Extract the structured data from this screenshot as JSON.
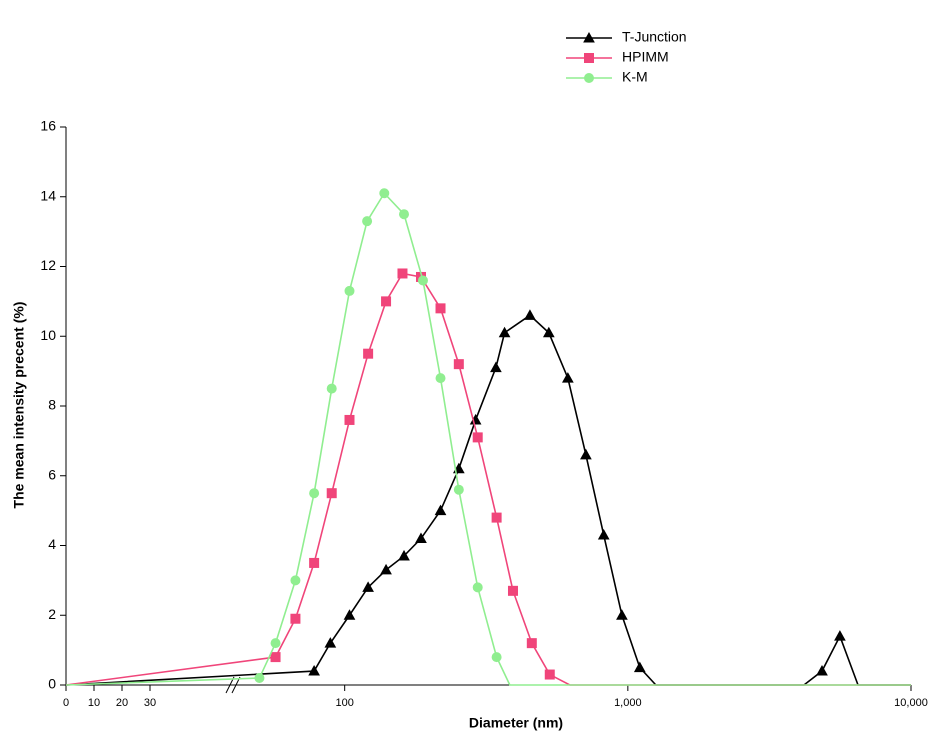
{
  "chart_data": {
    "type": "line",
    "x_label": "Diameter (nm)",
    "y_label": "The mean intensity precent (%)",
    "xscale": "log",
    "xbreak": 40,
    "xlim": [
      0,
      10000
    ],
    "ylim": [
      0,
      16
    ],
    "xticks": [
      0,
      10,
      20,
      30,
      100,
      {
        "value": 1000,
        "label": "1,000"
      },
      {
        "value": 10000,
        "label": "10,000"
      }
    ],
    "yticks": [
      0,
      2,
      4,
      6,
      8,
      10,
      12,
      14,
      16
    ],
    "legend": "top-right",
    "series": [
      {
        "name": "T-Junction",
        "color": "#000000",
        "marker": "triangle",
        "x": [
          0,
          78,
          89,
          104,
          121,
          140,
          162,
          186,
          218,
          253,
          290,
          342,
          367,
          451,
          526,
          614,
          711,
          822,
          953,
          1102,
          1256,
          4188,
          4850,
          5610,
          6500,
          10000
        ],
        "values": [
          0,
          0.4,
          1.2,
          2.0,
          2.8,
          3.3,
          3.7,
          4.2,
          5.0,
          6.2,
          7.6,
          9.1,
          10.1,
          10.6,
          10.1,
          8.8,
          6.6,
          4.3,
          2.0,
          0.5,
          0,
          0,
          0.4,
          1.4,
          0,
          0
        ]
      },
      {
        "name": "HPIMM",
        "color": "#f0457a",
        "marker": "square",
        "x": [
          0,
          57,
          67,
          78,
          90,
          104,
          121,
          140,
          160,
          186,
          218,
          253,
          295,
          344,
          393,
          458,
          530,
          624,
          10000
        ],
        "values": [
          0,
          0.8,
          1.9,
          3.5,
          5.5,
          7.6,
          9.5,
          11.0,
          11.8,
          11.7,
          10.8,
          9.2,
          7.1,
          4.8,
          2.7,
          1.2,
          0.3,
          0,
          0
        ]
      },
      {
        "name": "K-M",
        "color": "#90ee90",
        "marker": "circle",
        "x": [
          0,
          50,
          57,
          67,
          78,
          90,
          104,
          120,
          138,
          162,
          189,
          218,
          253,
          295,
          344,
          383,
          10000
        ],
        "values": [
          0,
          0.2,
          1.2,
          3.0,
          5.5,
          8.5,
          11.3,
          13.3,
          14.1,
          13.5,
          11.6,
          8.8,
          5.6,
          2.8,
          0.8,
          0,
          0
        ]
      }
    ]
  }
}
